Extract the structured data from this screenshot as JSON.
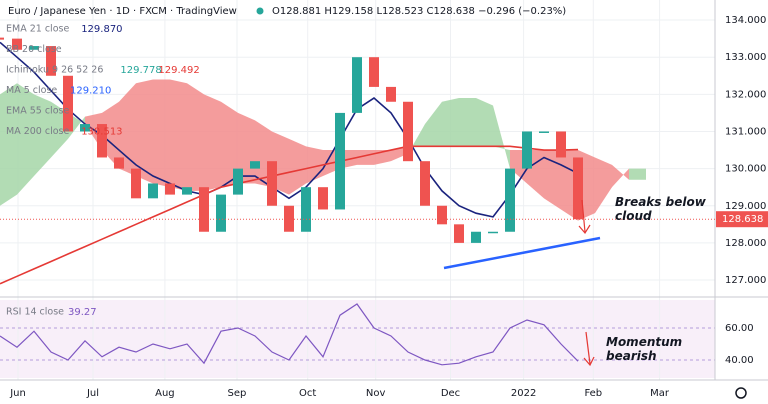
{
  "header": {
    "title": "Euro / Japanese Yen · 1D · FXCM · TradingView",
    "ohlc": "O128.881 H129.158 L128.523 C128.638 −0.296 (−0.23%)",
    "legend": [
      {
        "label": "EMA 21 close",
        "values": [
          "129.870"
        ]
      },
      {
        "label": "BB 20 close",
        "values": []
      },
      {
        "label": "Ichimoku 9 26 52 26",
        "values": [
          "129.778",
          "129.492"
        ]
      },
      {
        "label": "MA 5 close",
        "values": [
          "129.210"
        ]
      },
      {
        "label": "EMA 55 close",
        "values": []
      },
      {
        "label": "MA 200 close",
        "values": [
          "130.513"
        ]
      }
    ]
  },
  "chart_data": [
    {
      "type": "price",
      "xlim": [
        0,
        42
      ],
      "xticks": [
        {
          "value": 1.06,
          "label": "Jun"
        },
        {
          "value": 5.47,
          "label": "Jul"
        },
        {
          "value": 9.7,
          "label": "Aug"
        },
        {
          "value": 13.94,
          "label": "Sep"
        },
        {
          "value": 18.1,
          "label": "Oct"
        },
        {
          "value": 22.1,
          "label": "Nov"
        },
        {
          "value": 26.5,
          "label": "Dec"
        },
        {
          "value": 30.8,
          "label": "2022"
        },
        {
          "value": 34.9,
          "label": "Feb"
        },
        {
          "value": 38.8,
          "label": "Mar"
        }
      ],
      "ylim": [
        126.57,
        134.54
      ],
      "yticks": [
        {
          "value": 127,
          "label": "127.000"
        },
        {
          "value": 128,
          "label": "128.000"
        },
        {
          "value": 129,
          "label": "129.000"
        },
        {
          "value": 130,
          "label": "130.000"
        },
        {
          "value": 131,
          "label": "131.000"
        },
        {
          "value": 132,
          "label": "132.000"
        },
        {
          "value": 133,
          "label": "133.000"
        },
        {
          "value": 134,
          "label": "134.000"
        }
      ],
      "grid": true,
      "close": {
        "color_up": "#26a69a",
        "color_down": "#ef5350",
        "values": [
          133.5,
          133.2,
          133.3,
          132.5,
          131.0,
          131.2,
          130.3,
          130.0,
          129.2,
          129.6,
          129.3,
          129.5,
          128.3,
          129.3,
          130.0,
          130.2,
          129.0,
          128.3,
          129.5,
          128.9,
          131.5,
          133.0,
          132.2,
          131.8,
          130.2,
          129.0,
          128.5,
          128.0,
          128.3,
          128.3,
          130.0,
          131.0,
          131.0,
          130.3,
          128.638
        ]
      },
      "cloud": {
        "color_up": "#a5d6a7",
        "color_down": "#f28b8b",
        "span_a": [
          132.0,
          132.3,
          132.0,
          131.8,
          131.5,
          131.2,
          130.5,
          130.0,
          129.8,
          129.6,
          129.5,
          129.4,
          129.4,
          129.5,
          129.6,
          129.6,
          129.5,
          129.3,
          129.6,
          129.8,
          130.0,
          130.1,
          130.1,
          130.2,
          130.4,
          131.2,
          131.8,
          131.9,
          131.9,
          131.7,
          130.0,
          129.6,
          129.2,
          128.9,
          128.6,
          128.8,
          129.5,
          130.0,
          130.0
        ],
        "span_b": [
          129.0,
          129.3,
          129.8,
          130.3,
          130.8,
          131.4,
          131.5,
          131.8,
          132.3,
          132.4,
          132.4,
          132.3,
          132.0,
          131.8,
          131.5,
          131.3,
          131.0,
          130.8,
          130.6,
          130.5,
          130.5,
          130.5,
          130.5,
          130.5,
          130.6,
          130.6,
          130.6,
          130.6,
          130.6,
          130.6,
          130.5,
          130.5,
          130.5,
          130.5,
          130.5,
          130.3,
          130.1,
          129.7,
          129.7
        ]
      },
      "series": [
        {
          "color": "#1a237e",
          "values": [
            133.4,
            133.0,
            132.6,
            132.1,
            131.6,
            131.2,
            130.9,
            130.5,
            130.1,
            129.8,
            129.6,
            129.4,
            129.3,
            129.5,
            129.8,
            129.8,
            129.5,
            129.2,
            129.5,
            130.0,
            130.8,
            131.6,
            131.9,
            131.5,
            130.8,
            130.0,
            129.4,
            129.0,
            128.8,
            128.7,
            129.3,
            130.0,
            130.3,
            130.1,
            129.87
          ]
        },
        {
          "color": "#e53935",
          "values": [
            126.9,
            127.1,
            127.3,
            127.5,
            127.7,
            127.9,
            128.1,
            128.3,
            128.5,
            128.7,
            128.9,
            129.1,
            129.3,
            129.5,
            129.6,
            129.7,
            129.8,
            129.9,
            130.0,
            130.1,
            130.2,
            130.3,
            130.4,
            130.5,
            130.6,
            130.6,
            130.6,
            130.6,
            130.6,
            130.6,
            130.6,
            130.55,
            130.5,
            130.5,
            130.513
          ]
        }
      ],
      "last_price": {
        "value": 128.638,
        "label": "128.638"
      },
      "annotation": "Breaks below cloud"
    },
    {
      "type": "rsi",
      "title": "RSI 14 close",
      "last_label": "39.27",
      "ylim": [
        28.75,
        77.5
      ],
      "yticks": [
        {
          "value": 40,
          "label": "40.00"
        },
        {
          "value": 60,
          "label": "60.00"
        }
      ],
      "color": "#7e57c2",
      "values": [
        55,
        48,
        58,
        45,
        40,
        52,
        42,
        48,
        45,
        50,
        47,
        50,
        38,
        58,
        60,
        55,
        45,
        40,
        55,
        42,
        68,
        75,
        60,
        55,
        45,
        40,
        37,
        38,
        42,
        45,
        60,
        65,
        62,
        50,
        39.27
      ],
      "annotation": "Momentum bearish"
    }
  ]
}
